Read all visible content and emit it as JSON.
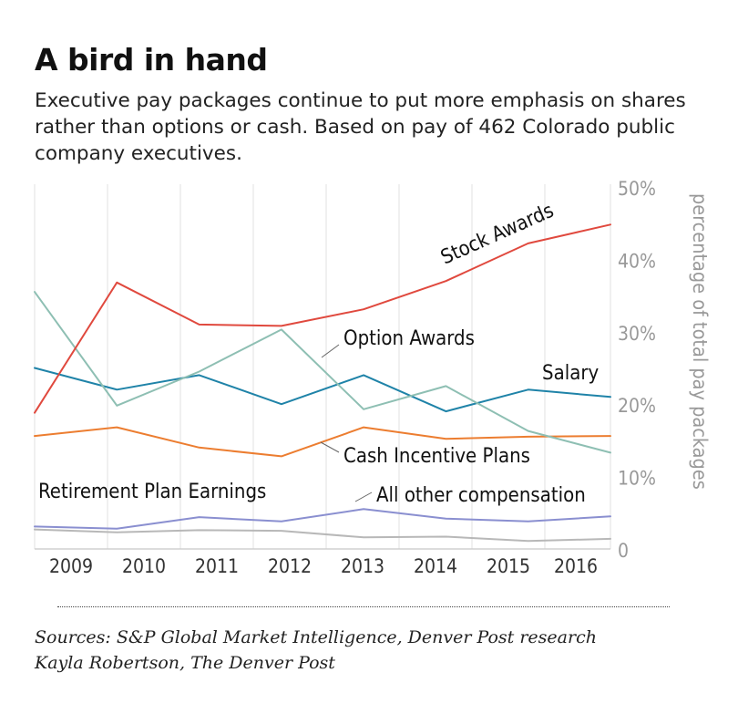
{
  "title": "A bird in hand",
  "subtitle": "Executive pay packages continue to put more emphasis on shares rather than options or cash. Based on pay of 462 Colorado public company executives.",
  "footer": {
    "sources": "Sources: S&P Global Market Intelligence, Denver Post research",
    "credit": "Kayla Robertson, The Denver Post"
  },
  "chart_data": {
    "type": "line",
    "x_tick_labels": [
      "2009",
      "2010",
      "2011",
      "2012",
      "2013",
      "2014",
      "2015",
      "2016"
    ],
    "x_values": [
      2008.5,
      2009.6,
      2010.7,
      2011.8,
      2012.9,
      2014.0,
      2015.1,
      2016.2
    ],
    "xlim": [
      2008.5,
      2016.2
    ],
    "ylabel": "percentage of total pay packages",
    "ylim": [
      0,
      50
    ],
    "y_ticks": [
      0,
      10,
      20,
      30,
      40,
      50
    ],
    "y_tick_labels": [
      "0",
      "10%",
      "20%",
      "30%",
      "40%",
      "50%"
    ],
    "y_axis_position": "right",
    "grid": "vertical",
    "series": [
      {
        "name": "Stock Awards",
        "color": "#e0493e",
        "values": [
          18.8,
          36.8,
          31.0,
          30.8,
          33.1,
          37.0,
          42.2,
          44.8
        ]
      },
      {
        "name": "Option Awards",
        "color": "#8ebfb3",
        "values": [
          35.5,
          19.8,
          24.5,
          30.3,
          19.3,
          22.5,
          16.3,
          13.3
        ]
      },
      {
        "name": "Salary",
        "color": "#1f83a8",
        "values": [
          25.0,
          22.0,
          24.0,
          20.0,
          24.0,
          19.0,
          22.0,
          21.0
        ]
      },
      {
        "name": "Cash Incentive Plans",
        "color": "#ec7d30",
        "values": [
          15.6,
          16.8,
          14.0,
          12.8,
          16.8,
          15.2,
          15.5,
          15.6
        ]
      },
      {
        "name": "All other compensation",
        "color": "#8a8fd0",
        "values": [
          3.1,
          2.8,
          4.4,
          3.8,
          5.5,
          4.2,
          3.8,
          4.5
        ]
      },
      {
        "name": "Retirement Plan Earnings",
        "color": "#b8b8b8",
        "values": [
          2.7,
          2.3,
          2.6,
          2.5,
          1.6,
          1.7,
          1.1,
          1.4
        ]
      }
    ]
  }
}
